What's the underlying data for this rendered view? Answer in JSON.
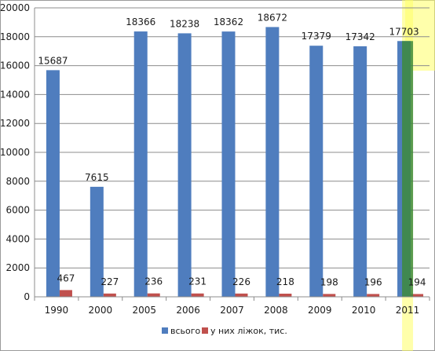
{
  "chart_data": {
    "type": "bar",
    "categories": [
      "1990",
      "2000",
      "2005",
      "2006",
      "2007",
      "2008",
      "2009",
      "2010",
      "2011"
    ],
    "series": [
      {
        "name": "всього",
        "color": "#4f7dbe",
        "values": [
          15687,
          7615,
          18366,
          18238,
          18362,
          18672,
          17379,
          17342,
          17703
        ],
        "labels": [
          "15687",
          "7615",
          "18366",
          "18238",
          "18362",
          "18672",
          "17379",
          "17342",
          "17703"
        ]
      },
      {
        "name": "у них ліжок, тис.",
        "color": "#c0504d",
        "values": [
          467,
          227,
          236,
          231,
          226,
          218,
          198,
          196,
          194
        ],
        "labels": [
          "467",
          "227",
          "236",
          "231",
          "226",
          "218",
          "198",
          "196",
          "194"
        ]
      }
    ],
    "ylim": [
      0,
      20000
    ],
    "yticks": [
      0,
      2000,
      4000,
      6000,
      8000,
      10000,
      12000,
      14000,
      16000,
      18000,
      20000
    ],
    "ytick_labels": [
      "0",
      "2000",
      "4000",
      "6000",
      "8000",
      "10000",
      "12000",
      "14000",
      "16000",
      "18000",
      "20000"
    ],
    "grid": true,
    "legend_position": "bottom",
    "highlight_category": "2011",
    "highlight_color": "#ffff66"
  }
}
